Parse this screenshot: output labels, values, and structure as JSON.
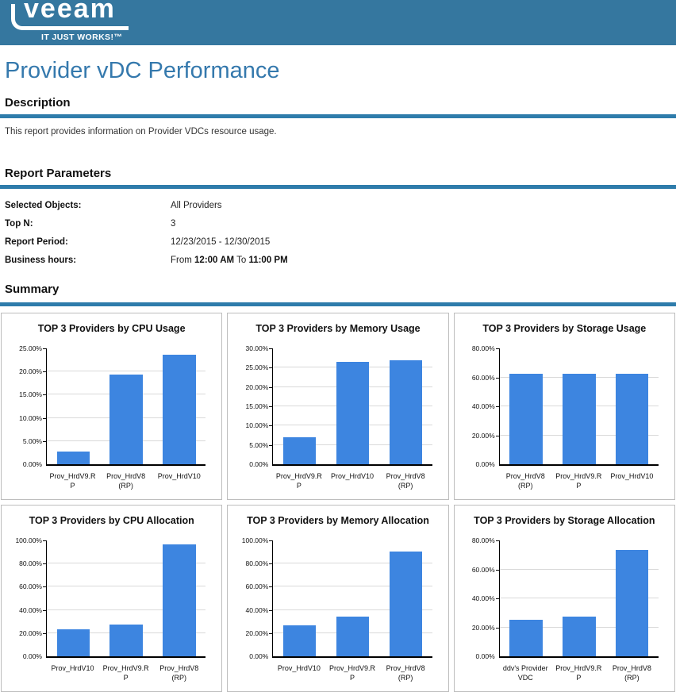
{
  "brand": {
    "logo_text": "veeam",
    "tagline": "IT JUST WORKS!™",
    "header_bg": "#35779F"
  },
  "page": {
    "title": "Provider vDC Performance"
  },
  "sections": {
    "description": {
      "heading": "Description",
      "text": "This report provides information on Provider VDCs resource usage."
    },
    "parameters": {
      "heading": "Report Parameters",
      "rows": [
        {
          "label": "Selected Objects:",
          "value_parts": [
            {
              "text": "All Providers",
              "bold": false
            }
          ]
        },
        {
          "label": "Top N:",
          "value_parts": [
            {
              "text": "3",
              "bold": false
            }
          ]
        },
        {
          "label": "Report Period:",
          "value_parts": [
            {
              "text": "12/23/2015 - 12/30/2015",
              "bold": false
            }
          ]
        },
        {
          "label": "Business hours:",
          "value_parts": [
            {
              "text": "From ",
              "bold": false
            },
            {
              "text": "12:00 AM",
              "bold": true
            },
            {
              "text": " To ",
              "bold": false
            },
            {
              "text": "11:00 PM",
              "bold": true
            }
          ]
        }
      ]
    },
    "summary": {
      "heading": "Summary"
    }
  },
  "colors": {
    "header_bg": "#35779F",
    "accent_bar": "#2E7CAB",
    "title_color": "#3579AD",
    "bar_fill": "#3D85E0",
    "grid_line": "#D9D9D9",
    "panel_border": "#BDBDBD"
  },
  "chart_data": [
    {
      "type": "bar",
      "title": "TOP 3 Providers by CPU Usage",
      "categories": [
        "Prov_HrdV9.RP",
        "Prov_HrdV8 (RP)",
        "Prov_HrdV10"
      ],
      "category_lines": [
        [
          "Prov_HrdV9.R",
          "P"
        ],
        [
          "Prov_HrdV8",
          "(RP)"
        ],
        [
          "Prov_HrdV10"
        ]
      ],
      "values": [
        2.8,
        19.3,
        23.6
      ],
      "ylabel": "",
      "xlabel": "",
      "ylim": [
        0,
        25
      ],
      "ytick_step": 5,
      "ytick_format": "0.00%",
      "grid": true,
      "legend": "none"
    },
    {
      "type": "bar",
      "title": "TOP 3 Providers by Memory Usage",
      "categories": [
        "Prov_HrdV9.RP",
        "Prov_HrdV10",
        "Prov_HrdV8 (RP)"
      ],
      "category_lines": [
        [
          "Prov_HrdV9.R",
          "P"
        ],
        [
          "Prov_HrdV10"
        ],
        [
          "Prov_HrdV8",
          "(RP)"
        ]
      ],
      "values": [
        6.9,
        26.6,
        27.0
      ],
      "ylabel": "",
      "xlabel": "",
      "ylim": [
        0,
        30
      ],
      "ytick_step": 5,
      "ytick_format": "0.00%",
      "grid": true,
      "legend": "none"
    },
    {
      "type": "bar",
      "title": "TOP 3 Providers by Storage Usage",
      "categories": [
        "Prov_HrdV8 (RP)",
        "Prov_HrdV9.RP",
        "Prov_HrdV10"
      ],
      "category_lines": [
        [
          "Prov_HrdV8",
          "(RP)"
        ],
        [
          "Prov_HrdV9.R",
          "P"
        ],
        [
          "Prov_HrdV10"
        ]
      ],
      "values": [
        62.5,
        62.5,
        62.5
      ],
      "ylabel": "",
      "xlabel": "",
      "ylim": [
        0,
        80
      ],
      "ytick_step": 20,
      "ytick_format": "0.00%",
      "grid": true,
      "legend": "none"
    },
    {
      "type": "bar",
      "title": "TOP 3 Providers by CPU Allocation",
      "categories": [
        "Prov_HrdV10",
        "Prov_HrdV9.RP",
        "Prov_HrdV8 (RP)"
      ],
      "category_lines": [
        [
          "Prov_HrdV10"
        ],
        [
          "Prov_HrdV9.R",
          "P"
        ],
        [
          "Prov_HrdV8",
          "(RP)"
        ]
      ],
      "values": [
        23.3,
        27.7,
        96.4
      ],
      "ylabel": "",
      "xlabel": "",
      "ylim": [
        0,
        100
      ],
      "ytick_step": 20,
      "ytick_format": "0.00%",
      "grid": true,
      "legend": "none"
    },
    {
      "type": "bar",
      "title": "TOP 3 Providers by Memory Allocation",
      "categories": [
        "Prov_HrdV10",
        "Prov_HrdV9.RP",
        "Prov_HrdV8 (RP)"
      ],
      "category_lines": [
        [
          "Prov_HrdV10"
        ],
        [
          "Prov_HrdV9.R",
          "P"
        ],
        [
          "Prov_HrdV8",
          "(RP)"
        ]
      ],
      "values": [
        26.5,
        34.0,
        90.2
      ],
      "ylabel": "",
      "xlabel": "",
      "ylim": [
        0,
        100
      ],
      "ytick_step": 20,
      "ytick_format": "0.00%",
      "grid": true,
      "legend": "none"
    },
    {
      "type": "bar",
      "title": "TOP 3 Providers by Storage Allocation",
      "categories": [
        "ddv's Provider VDC",
        "Prov_HrdV9.RP",
        "Prov_HrdV8 (RP)"
      ],
      "category_lines": [
        [
          "ddv's Provider",
          "VDC"
        ],
        [
          "Prov_HrdV9.R",
          "P"
        ],
        [
          "Prov_HrdV8",
          "(RP)"
        ]
      ],
      "values": [
        25.2,
        27.2,
        73.2
      ],
      "ylabel": "",
      "xlabel": "",
      "ylim": [
        0,
        80
      ],
      "ytick_step": 20,
      "ytick_format": "0.00%",
      "grid": true,
      "legend": "none"
    }
  ]
}
